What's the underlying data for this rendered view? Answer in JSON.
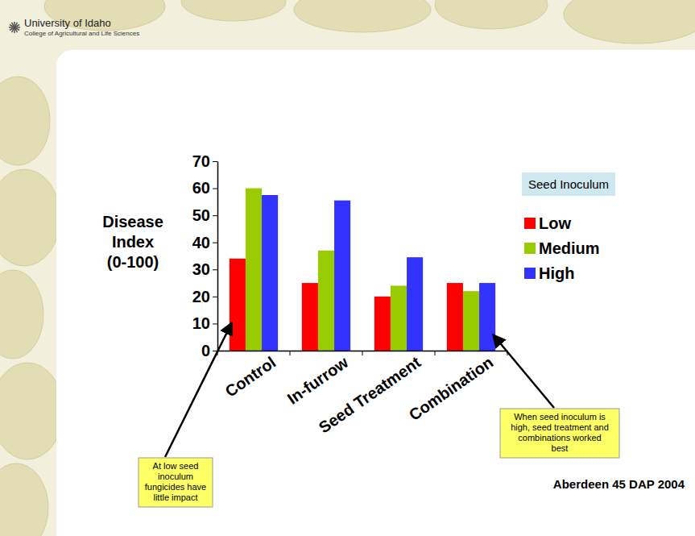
{
  "header": {
    "title": "University of Idaho",
    "subtitle": "College of Agricultural and Life Sciences"
  },
  "chart_data": {
    "type": "bar",
    "ylabel": "Disease Index (0-100)",
    "categories": [
      "Control",
      "In-furrow",
      "Seed Treatment",
      "Combination"
    ],
    "series": [
      {
        "name": "Low",
        "color": "#ff0000",
        "values": [
          34,
          25,
          20,
          25
        ]
      },
      {
        "name": "Medium",
        "color": "#99cc00",
        "values": [
          60,
          37,
          24,
          22
        ]
      },
      {
        "name": "High",
        "color": "#3333ff",
        "values": [
          57.5,
          55.5,
          34.5,
          25
        ]
      }
    ],
    "ylim": [
      0,
      70
    ],
    "yticks": [
      0,
      10,
      20,
      30,
      40,
      50,
      60,
      70
    ],
    "grid": false,
    "legend": "right",
    "legend_title": "Seed Inoculum",
    "annotations": [
      "At low seed inoculum fungicides have little impact",
      "When seed inoculum is high, seed treatment and combinations worked best",
      "Aberdeen 45 DAP 2004"
    ]
  }
}
